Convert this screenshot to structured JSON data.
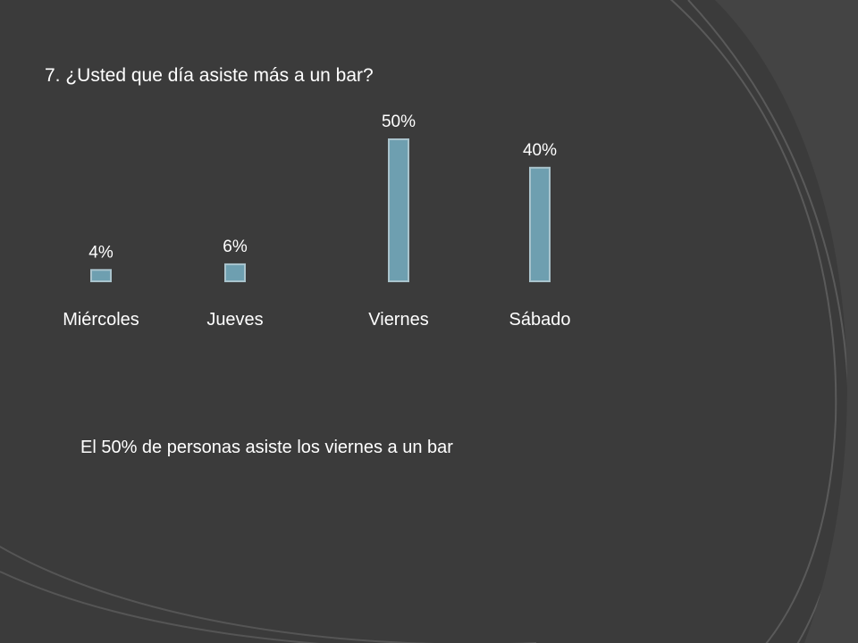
{
  "slide": {
    "question": "7. ¿Usted que día asiste más a un bar?",
    "caption": "El 50% de personas asiste los viernes a un bar"
  },
  "colors": {
    "background": "#3b3b3b",
    "bar_fill": "#6e9fb0",
    "bar_stroke": "#a9c3cc",
    "text": "#ffffff"
  },
  "chart_data": {
    "type": "bar",
    "categories": [
      "Miércoles",
      "Jueves",
      "Viernes",
      "Sábado"
    ],
    "values": [
      4,
      6,
      50,
      40
    ],
    "data_labels": [
      "4%",
      "6%",
      "50%",
      "40%"
    ],
    "title": "",
    "xlabel": "",
    "ylabel": "",
    "ylim": [
      0,
      50
    ],
    "grid": false,
    "legend": "none"
  }
}
